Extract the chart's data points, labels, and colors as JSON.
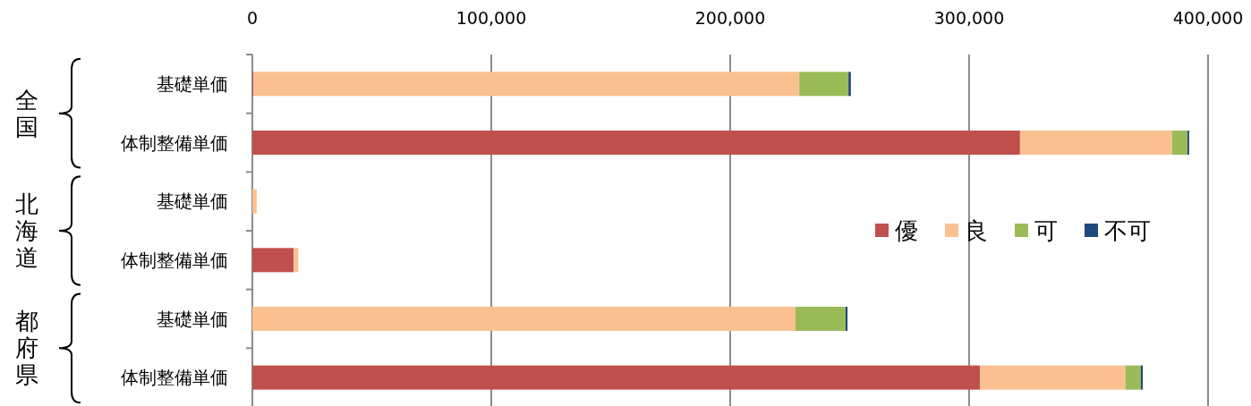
{
  "chart_data": {
    "type": "bar",
    "orientation": "horizontal",
    "stacked": true,
    "categories": [
      "基礎単価",
      "体制整備単価",
      "基礎単価",
      "体制整備単価",
      "基礎単価",
      "体制整備単価"
    ],
    "series": [
      {
        "name": "優",
        "color": "#c0504d",
        "values": [
          500,
          321300,
          0,
          17300,
          0,
          304500
        ]
      },
      {
        "name": "良",
        "color": "#fac090",
        "values": [
          228400,
          63700,
          1800,
          1900,
          227300,
          61000
        ]
      },
      {
        "name": "可",
        "color": "#9bbb59",
        "values": [
          20600,
          6400,
          null,
          null,
          21000,
          6400
        ]
      },
      {
        "name": "不可",
        "color": "#1f497d",
        "values": [
          1000,
          700,
          null,
          null,
          800,
          800
        ]
      }
    ],
    "xlim": [
      0,
      400000
    ],
    "xticks": [
      0,
      {
        "value": 100000,
        "label": "100,000"
      },
      {
        "value": 200000,
        "label": "200,000"
      },
      {
        "value": 300000,
        "label": "300,000"
      },
      {
        "value": 400000,
        "label": "400,000"
      }
    ],
    "grid": "x",
    "legend": "right",
    "annotations": [
      "全国",
      "北海道",
      "都府県"
    ]
  }
}
